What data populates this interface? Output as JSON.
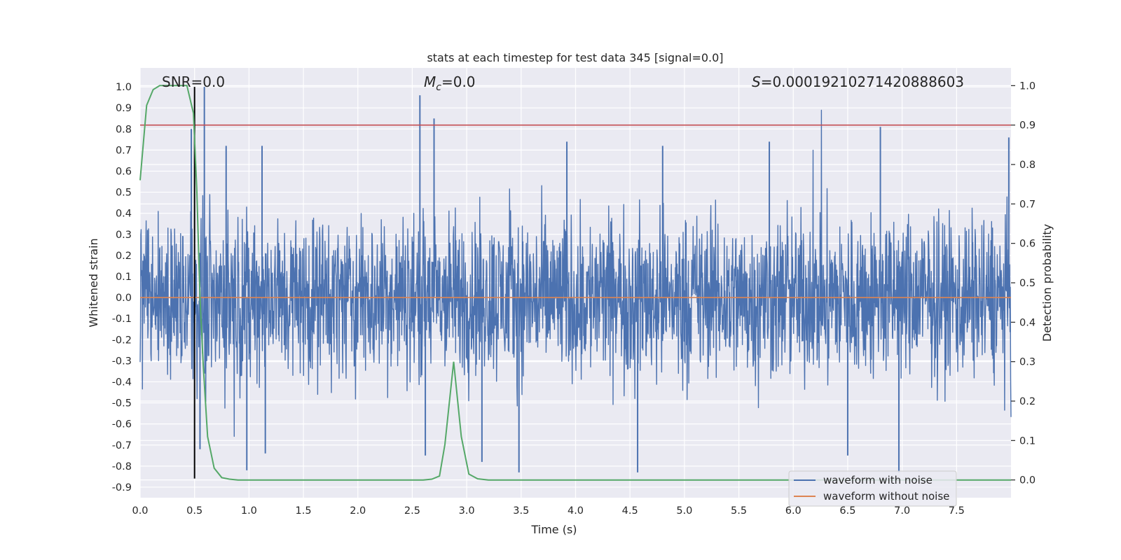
{
  "chart_data": {
    "type": "line",
    "title": "stats at each timestep for test data 345 [signal=0.0]",
    "xlabel": "Time (s)",
    "ylabel": "Whitened strain",
    "ylabel_right": "Detection probability",
    "xlim": [
      0.0,
      8.0
    ],
    "ylim": [
      -0.95,
      1.09
    ],
    "ylim_right": [
      -0.045,
      1.045
    ],
    "x_ticks": [
      "0.0",
      "0.5",
      "1.0",
      "1.5",
      "2.0",
      "2.5",
      "3.0",
      "3.5",
      "4.0",
      "4.5",
      "5.0",
      "5.5",
      "6.0",
      "6.5",
      "7.0",
      "7.5"
    ],
    "y_ticks": [
      "1.0",
      "0.9",
      "0.8",
      "0.7",
      "0.6",
      "0.5",
      "0.4",
      "0.3",
      "0.2",
      "0.1",
      "0.0",
      "-0.1",
      "-0.2",
      "-0.3",
      "-0.4",
      "-0.5",
      "-0.6",
      "-0.7",
      "-0.8",
      "-0.9"
    ],
    "y_ticks_right": [
      "1.0",
      "0.9",
      "0.8",
      "0.7",
      "0.6",
      "0.5",
      "0.4",
      "0.3",
      "0.2",
      "0.1",
      "0.0"
    ],
    "annotations": {
      "snr": "SNR=0.0",
      "mc_symbol": "M",
      "mc_sub": "c",
      "mc_value": "=0.0",
      "s_symbol": "S",
      "s_value": "=0.00019210271420888603"
    },
    "legend": {
      "location": "lower right",
      "entries": [
        "waveform with noise",
        "waveform without noise"
      ]
    },
    "threshold": {
      "value": 0.9,
      "axis": "right",
      "color": "#c44e52"
    },
    "marker_time": 0.5,
    "noise": {
      "typical_range": [
        -0.35,
        0.4
      ],
      "spikes": [
        [
          0.47,
          0.8
        ],
        [
          0.59,
          1.0
        ],
        [
          0.55,
          -0.72
        ],
        [
          0.98,
          -0.82
        ],
        [
          1.15,
          -0.74
        ],
        [
          2.57,
          0.96
        ],
        [
          2.7,
          0.85
        ],
        [
          3.14,
          -0.78
        ],
        [
          3.48,
          -0.83
        ],
        [
          3.92,
          0.74
        ],
        [
          4.57,
          -0.83
        ],
        [
          4.8,
          0.72
        ],
        [
          6.8,
          0.81
        ],
        [
          6.97,
          -0.83
        ],
        [
          7.98,
          0.76
        ],
        [
          0.79,
          0.72
        ],
        [
          1.12,
          0.72
        ],
        [
          2.62,
          -0.75
        ],
        [
          6.5,
          -0.75
        ],
        [
          5.78,
          0.74
        ]
      ]
    },
    "series": [
      {
        "name": "waveform with noise",
        "color": "#4c72b0"
      },
      {
        "name": "waveform without noise",
        "color": "#dd8452",
        "y": 0.0
      },
      {
        "name": "detection probability",
        "color": "#55a868",
        "axis": "right",
        "x": [
          0.0,
          0.06,
          0.12,
          0.18,
          0.25,
          0.31,
          0.37,
          0.43,
          0.49,
          0.52,
          0.55,
          0.58,
          0.62,
          0.68,
          0.75,
          0.82,
          0.9,
          1.0,
          2.0,
          2.6,
          2.68,
          2.75,
          2.8,
          2.88,
          2.95,
          3.02,
          3.1,
          3.2,
          4.0,
          6.0,
          8.0
        ],
        "y": [
          0.76,
          0.95,
          0.99,
          1.0,
          1.0,
          1.0,
          1.0,
          1.0,
          0.93,
          0.74,
          0.46,
          0.29,
          0.11,
          0.03,
          0.006,
          0.002,
          0.0,
          0.0,
          0.0,
          0.0,
          0.002,
          0.01,
          0.09,
          0.3,
          0.11,
          0.015,
          0.003,
          0.0,
          0.0,
          0.0,
          0.0
        ]
      }
    ]
  }
}
